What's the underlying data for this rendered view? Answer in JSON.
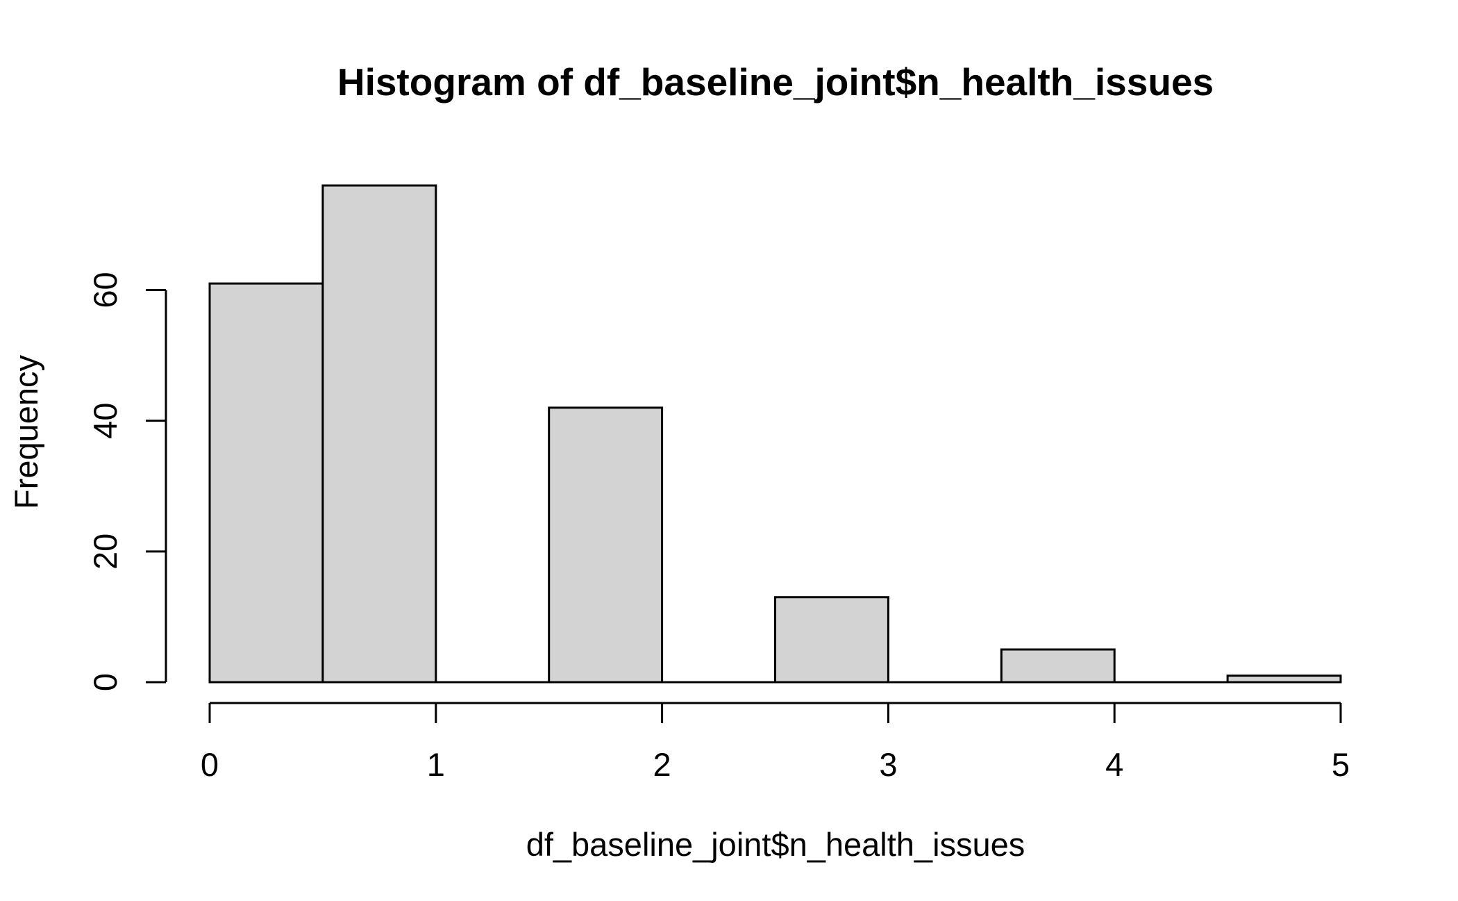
{
  "chart_data": {
    "type": "bar",
    "title": "Histogram of df_baseline_joint$n_health_issues",
    "xlabel": "df_baseline_joint$n_health_issues",
    "ylabel": "Frequency",
    "bins": [
      {
        "x0": 0.0,
        "x1": 0.5,
        "count": 61
      },
      {
        "x0": 0.5,
        "x1": 1.0,
        "count": 76
      },
      {
        "x0": 1.0,
        "x1": 1.5,
        "count": 0
      },
      {
        "x0": 1.5,
        "x1": 2.0,
        "count": 42
      },
      {
        "x0": 2.0,
        "x1": 2.5,
        "count": 0
      },
      {
        "x0": 2.5,
        "x1": 3.0,
        "count": 13
      },
      {
        "x0": 3.0,
        "x1": 3.5,
        "count": 0
      },
      {
        "x0": 3.5,
        "x1": 4.0,
        "count": 5
      },
      {
        "x0": 4.0,
        "x1": 4.5,
        "count": 0
      },
      {
        "x0": 4.5,
        "x1": 5.0,
        "count": 1
      }
    ],
    "xlim": [
      0,
      5
    ],
    "ylim": [
      0,
      76
    ],
    "x_ticks": [
      0,
      1,
      2,
      3,
      4,
      5
    ],
    "x_tick_labels": [
      "0",
      "1",
      "2",
      "3",
      "4",
      "5"
    ],
    "y_ticks": [
      0,
      20,
      40,
      60
    ],
    "y_tick_labels": [
      "0",
      "20",
      "40",
      "60"
    ],
    "bar_fill": "#d3d3d3",
    "bar_stroke": "#000000",
    "grid": false,
    "legend": "none"
  }
}
